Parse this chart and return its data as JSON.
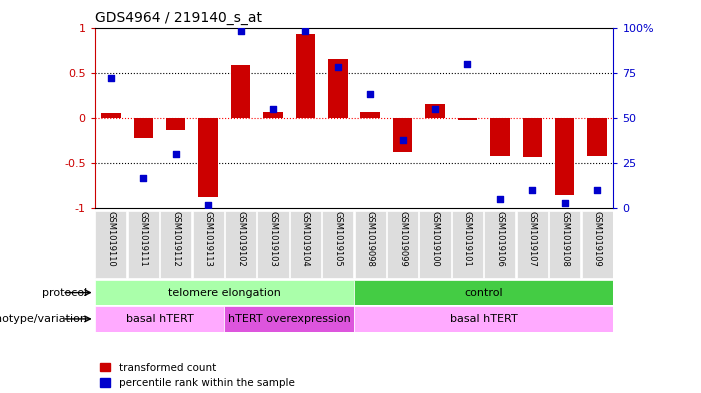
{
  "title": "GDS4964 / 219140_s_at",
  "samples": [
    "GSM1019110",
    "GSM1019111",
    "GSM1019112",
    "GSM1019113",
    "GSM1019102",
    "GSM1019103",
    "GSM1019104",
    "GSM1019105",
    "GSM1019098",
    "GSM1019099",
    "GSM1019100",
    "GSM1019101",
    "GSM1019106",
    "GSM1019107",
    "GSM1019108",
    "GSM1019109"
  ],
  "bar_values": [
    0.05,
    -0.22,
    -0.13,
    -0.88,
    0.58,
    0.07,
    0.93,
    0.65,
    0.07,
    -0.38,
    0.15,
    -0.02,
    -0.42,
    -0.43,
    -0.85,
    -0.42
  ],
  "dot_values": [
    72,
    17,
    30,
    2,
    98,
    55,
    98,
    78,
    63,
    38,
    55,
    80,
    5,
    10,
    3,
    10
  ],
  "bar_color": "#cc0000",
  "dot_color": "#0000cc",
  "ylim": [
    -1,
    1
  ],
  "yticks_left": [
    -1,
    -0.5,
    0,
    0.5,
    1
  ],
  "yticks_right": [
    0,
    25,
    50,
    75,
    100
  ],
  "protocol_labels": [
    "telomere elongation",
    "control"
  ],
  "protocol_color_light": "#aaffaa",
  "protocol_color_dark": "#44cc44",
  "genotype_labels": [
    "basal hTERT",
    "hTERT overexpression",
    "basal hTERT"
  ],
  "genotype_color_light": "#ffaaff",
  "genotype_color_dark": "#dd55dd",
  "legend_items": [
    "transformed count",
    "percentile rank within the sample"
  ],
  "background_color": "#ffffff",
  "bar_width": 0.6,
  "tick_label_bg": "#dddddd"
}
